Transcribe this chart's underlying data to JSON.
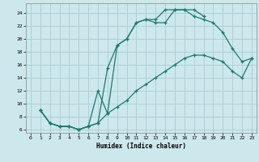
{
  "xlabel": "Humidex (Indice chaleur)",
  "background_color": "#cce8ec",
  "grid_color": "#aacdd4",
  "line_color": "#1a7a6e",
  "xlim": [
    -0.5,
    23.5
  ],
  "ylim": [
    5.5,
    25.5
  ],
  "xticks": [
    0,
    1,
    2,
    3,
    4,
    5,
    6,
    7,
    8,
    9,
    10,
    11,
    12,
    13,
    14,
    15,
    16,
    17,
    18,
    19,
    20,
    21,
    22,
    23
  ],
  "yticks": [
    6,
    8,
    10,
    12,
    14,
    16,
    18,
    20,
    22,
    24
  ],
  "line1_x": [
    1,
    2,
    3,
    4,
    5,
    6,
    7,
    8,
    9,
    10,
    11,
    12,
    13,
    14,
    15,
    16,
    17,
    18
  ],
  "line1_y": [
    9,
    7,
    6.5,
    6.5,
    6,
    6.5,
    12,
    8.5,
    19,
    20,
    22.5,
    23,
    22.5,
    22.5,
    24.5,
    24.5,
    24.5,
    23.5
  ],
  "line2_x": [
    1,
    2,
    3,
    4,
    5,
    6,
    7,
    8,
    9,
    10,
    11,
    12,
    13,
    14,
    15,
    16,
    17,
    18,
    19,
    20,
    21,
    22,
    23
  ],
  "line2_y": [
    9,
    7,
    6.5,
    6.5,
    6,
    6.5,
    7,
    15.5,
    19,
    20,
    22.5,
    23,
    23,
    24.5,
    24.5,
    24.5,
    23.5,
    23,
    22.5,
    21,
    18.5,
    16.5,
    17
  ],
  "line3_x": [
    1,
    2,
    3,
    4,
    5,
    6,
    7,
    8,
    9,
    10,
    11,
    12,
    13,
    14,
    15,
    16,
    17,
    18,
    19,
    20,
    21,
    22,
    23
  ],
  "line3_y": [
    9,
    7,
    6.5,
    6.5,
    6,
    6.5,
    7,
    8.5,
    9.5,
    10.5,
    12,
    13,
    14,
    15,
    16,
    17,
    17.5,
    17.5,
    17,
    16.5,
    15,
    14,
    17
  ]
}
